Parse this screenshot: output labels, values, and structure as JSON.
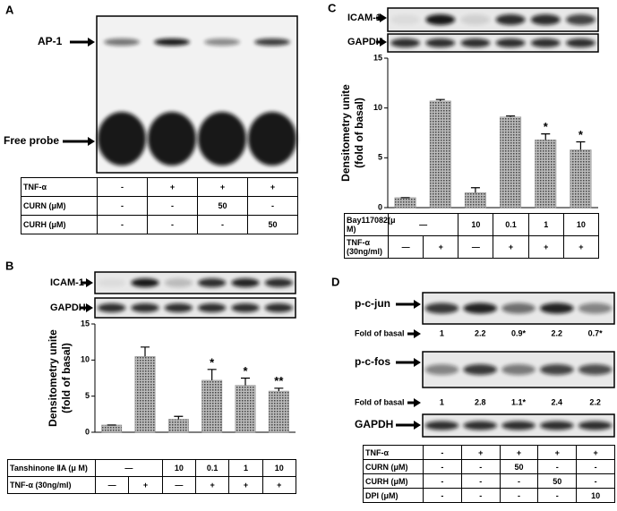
{
  "panel_labels": [
    "A",
    "B",
    "C",
    "D"
  ],
  "panel_a": {
    "blot_labels": [
      "AP-1",
      "Free probe"
    ],
    "table": [
      [
        "TNF-α",
        "-",
        "+",
        "+",
        "+"
      ],
      [
        "CURN (μM)",
        "-",
        "-",
        "50",
        "-"
      ],
      [
        "CURH (μM)",
        "-",
        "-",
        "-",
        "50"
      ]
    ]
  },
  "panel_b": {
    "blot_labels": [
      "ICAM-1",
      "GAPDH"
    ],
    "table": [
      [
        "Tanshinone ⅡA (μ M)",
        "—",
        "10",
        "0.1",
        "1",
        "10"
      ],
      [
        "TNF-α (30ng/ml)",
        "—",
        "+",
        "—",
        "+",
        "+",
        "+"
      ]
    ]
  },
  "panel_c": {
    "blot_labels": [
      "ICAM-1",
      "GAPDH"
    ],
    "table": [
      [
        "Bay117082(μ M)",
        "—",
        "10",
        "0.1",
        "1",
        "10"
      ],
      [
        "TNF-α (30ng/ml)",
        "—",
        "+",
        "—",
        "+",
        "+",
        "+"
      ]
    ]
  },
  "panel_d": {
    "blot_labels": [
      "p-c-jun",
      "p-c-fos",
      "GAPDH"
    ],
    "fold_label": "Fold of basal",
    "fold_rows": [
      [
        "1",
        "2.2",
        "0.9*",
        "2.2",
        "0.7*"
      ],
      [
        "1",
        "2.8",
        "1.1*",
        "2.4",
        "2.2"
      ]
    ],
    "table": [
      [
        "TNF-α",
        "-",
        "+",
        "+",
        "+",
        "+"
      ],
      [
        "CURN (μM)",
        "-",
        "-",
        "50",
        "-",
        "-"
      ],
      [
        "CURH (μM)",
        "-",
        "-",
        "-",
        "50",
        "-"
      ],
      [
        "DPI (μM)",
        "-",
        "-",
        "-",
        "-",
        "10"
      ]
    ]
  },
  "chart_data": [
    {
      "type": "bar",
      "ylabel": [
        "Densitometry unite",
        "(fold of basal)"
      ],
      "color": "#8a8a8a",
      "values": [
        1,
        10.5,
        1.8,
        7.2,
        6.5,
        5.7
      ],
      "errors": [
        0,
        1.3,
        0.4,
        1.5,
        1.0,
        0.4
      ],
      "annotations": [
        null,
        null,
        null,
        "*",
        "*",
        "**"
      ],
      "ylim": [
        0,
        15
      ],
      "yticks": [
        0,
        5,
        10,
        15
      ]
    },
    {
      "type": "bar",
      "ylabel": [
        "Densitometry unite",
        "(fold of basal)"
      ],
      "color": "#8a8a8a",
      "values": [
        1,
        10.7,
        1.5,
        9.1,
        6.8,
        5.8
      ],
      "errors": [
        0,
        0.15,
        0.5,
        0.1,
        0.6,
        0.8
      ],
      "annotations": [
        null,
        null,
        null,
        null,
        "*",
        "*"
      ],
      "ylim": [
        0,
        15
      ],
      "yticks": [
        0,
        5,
        10,
        15
      ]
    }
  ]
}
